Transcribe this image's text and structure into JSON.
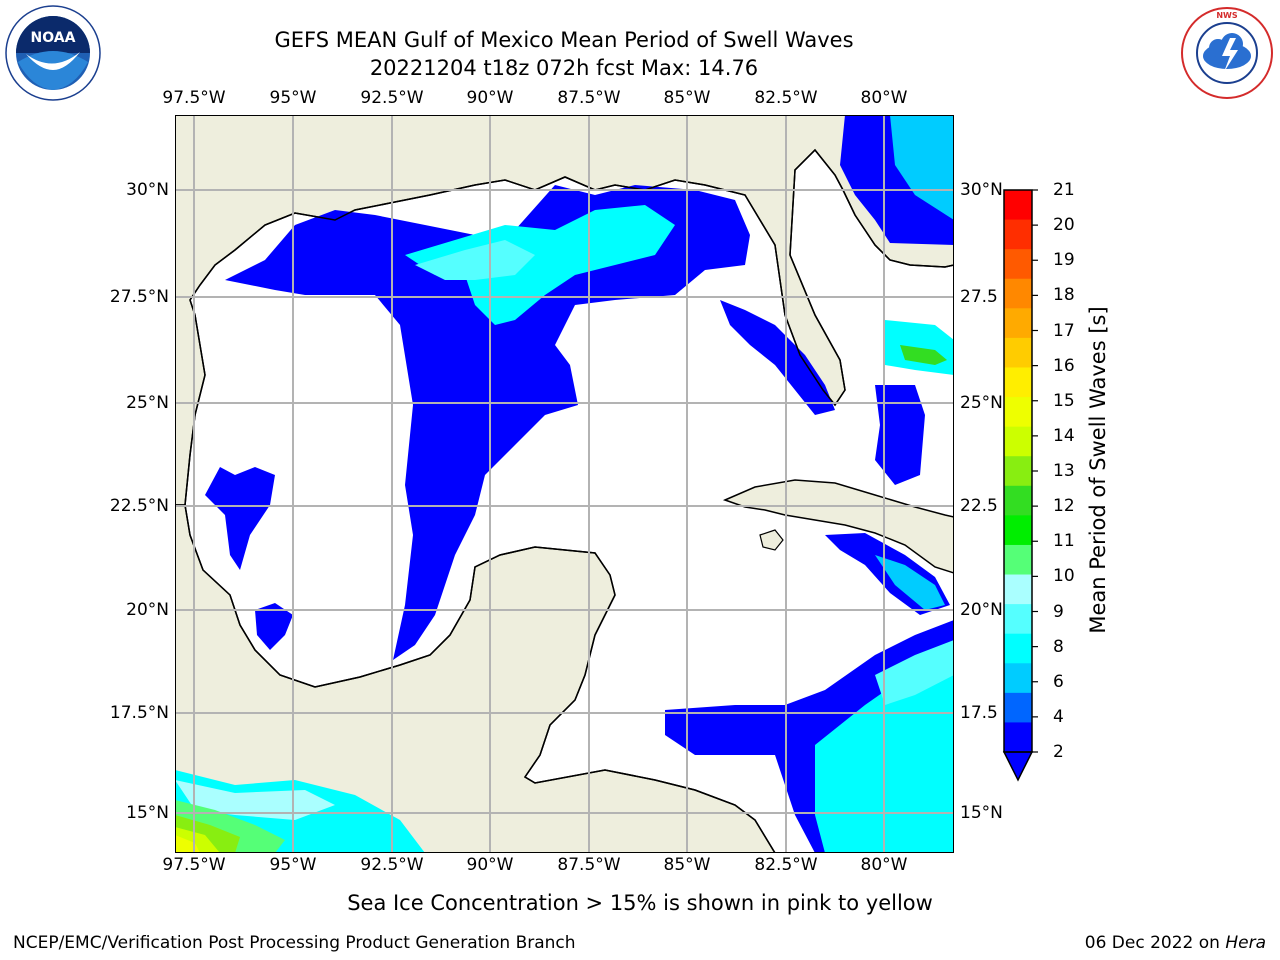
{
  "title": {
    "line1": "GEFS MEAN Gulf of Mexico Mean Period of Swell Waves",
    "line2": "20221204 t18z 072h fcst   Max: 14.76"
  },
  "logos": {
    "left": {
      "icon": "noaa-logo",
      "text": "NOAA"
    },
    "right": {
      "icon": "national-weather-service-logo",
      "text": "NATIONAL WEATHER SERVICE"
    }
  },
  "map": {
    "lon_labels": [
      "97.5°W",
      "95°W",
      "92.5°W",
      "90°W",
      "87.5°W",
      "85°W",
      "82.5°W",
      "80°W"
    ],
    "lat_labels_left": [
      "30°N",
      "27.5°N",
      "25°N",
      "22.5°N",
      "20°N",
      "17.5°N",
      "15°N"
    ],
    "lat_labels_right": [
      "30°N",
      "27.5",
      "25°N",
      "22.5",
      "20°N",
      "17.5",
      "15°N"
    ],
    "colors": {
      "land": "#eeeedd",
      "grid": "#b3b3b3",
      "coast": "#000000"
    }
  },
  "colorbar": {
    "label": "Mean Period of Swell Waves [s]",
    "ticks": [
      "21",
      "20",
      "19",
      "18",
      "17",
      "16",
      "15",
      "14",
      "13",
      "12",
      "11",
      "10",
      "9",
      "8",
      "6",
      "4",
      "2"
    ],
    "colors": [
      "#ff0000",
      "#ff2e00",
      "#ff5a00",
      "#ff8800",
      "#ffaa00",
      "#ffcc00",
      "#ffee00",
      "#eeff00",
      "#ccff00",
      "#88ee11",
      "#33dd22",
      "#00ee00",
      "#55ff77",
      "#aaffff",
      "#55ffff",
      "#00ffff",
      "#00ccff",
      "#0066ff",
      "#0000ff"
    ]
  },
  "note": "Sea Ice Concentration > 15% is shown in pink to yellow",
  "footer": {
    "left": "NCEP/EMC/Verification Post Processing Product Generation Branch",
    "date": "06 Dec 2022 on ",
    "host": "Hera"
  }
}
